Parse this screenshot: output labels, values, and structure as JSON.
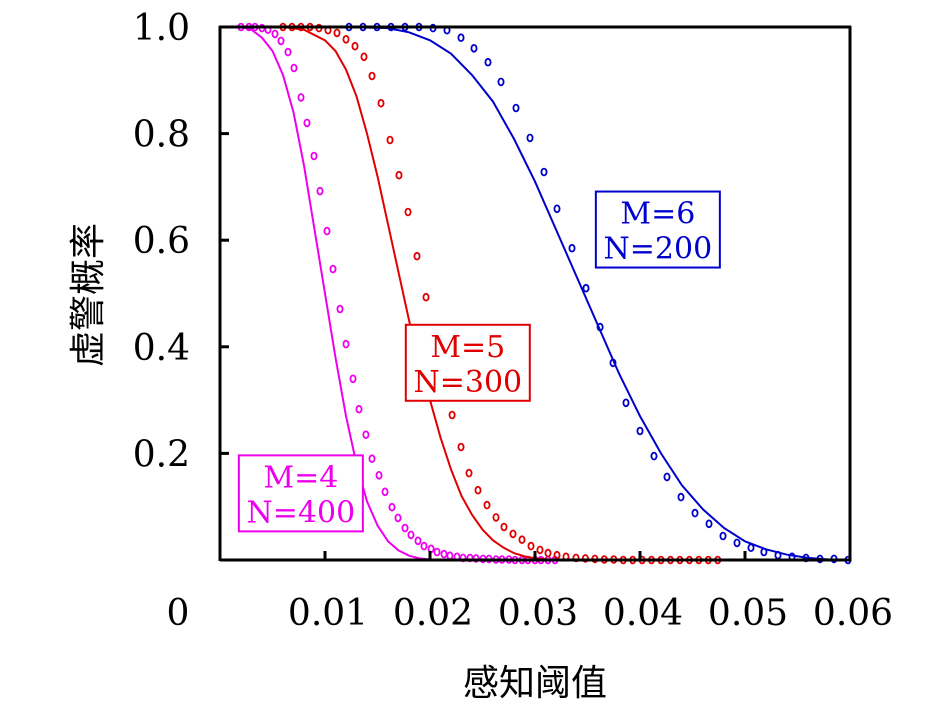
{
  "chart_data": {
    "type": "line",
    "title": "",
    "xlabel": "感知阈值",
    "ylabel": "虚警概率",
    "xlim": [
      0,
      0.06
    ],
    "ylim": [
      0,
      1.0
    ],
    "x_ticks": [
      "0",
      "0.01",
      "0.02",
      "0.03",
      "0.04",
      "0.05",
      "0.06"
    ],
    "x_tick_values": [
      0,
      0.01,
      0.02,
      0.03,
      0.04,
      0.05,
      0.06
    ],
    "y_ticks": [
      "0.2",
      "0.4",
      "0.6",
      "0.8",
      "1.0"
    ],
    "y_tick_values": [
      0.2,
      0.4,
      0.6,
      0.8,
      1.0
    ],
    "grid": false,
    "legend": "none",
    "series": [
      {
        "name": "M=4 N=400",
        "color": "#ee00ee",
        "annotation": {
          "line1": "M=4",
          "line2": "N=400",
          "anchor_x": 0.0077,
          "anchor_y": 0.125
        },
        "line": [
          [
            0.002,
            1.0
          ],
          [
            0.003,
            0.995
          ],
          [
            0.004,
            0.98
          ],
          [
            0.005,
            0.955
          ],
          [
            0.006,
            0.91
          ],
          [
            0.007,
            0.84
          ],
          [
            0.008,
            0.74
          ],
          [
            0.009,
            0.62
          ],
          [
            0.01,
            0.5
          ],
          [
            0.011,
            0.38
          ],
          [
            0.012,
            0.27
          ],
          [
            0.013,
            0.18
          ],
          [
            0.014,
            0.11
          ],
          [
            0.015,
            0.065
          ],
          [
            0.016,
            0.035
          ],
          [
            0.017,
            0.018
          ],
          [
            0.018,
            0.008
          ],
          [
            0.019,
            0.003
          ],
          [
            0.02,
            0.001
          ],
          [
            0.022,
            0.0
          ],
          [
            0.032,
            0.0
          ]
        ],
        "points": [
          [
            0.002,
            1.0
          ],
          [
            0.00276,
            1.0
          ],
          [
            0.00333,
            1.0
          ],
          [
            0.004,
            0.998
          ],
          [
            0.00457,
            0.995
          ],
          [
            0.00524,
            0.987
          ],
          [
            0.00581,
            0.974
          ],
          [
            0.00648,
            0.953
          ],
          [
            0.00705,
            0.923
          ],
          [
            0.00771,
            0.868
          ],
          [
            0.00829,
            0.82
          ],
          [
            0.00895,
            0.758
          ],
          [
            0.00952,
            0.692
          ],
          [
            0.01019,
            0.617
          ],
          [
            0.01076,
            0.546
          ],
          [
            0.01143,
            0.471
          ],
          [
            0.012,
            0.405
          ],
          [
            0.01267,
            0.34
          ],
          [
            0.01324,
            0.283
          ],
          [
            0.0139,
            0.235
          ],
          [
            0.01448,
            0.19
          ],
          [
            0.01514,
            0.159
          ],
          [
            0.01571,
            0.128
          ],
          [
            0.01638,
            0.099
          ],
          [
            0.01695,
            0.079
          ],
          [
            0.01762,
            0.06
          ],
          [
            0.01819,
            0.047
          ],
          [
            0.01886,
            0.036
          ],
          [
            0.01943,
            0.026
          ],
          [
            0.0201,
            0.021
          ],
          [
            0.02067,
            0.015
          ],
          [
            0.02133,
            0.011
          ],
          [
            0.0219,
            0.008
          ],
          [
            0.02257,
            0.006
          ],
          [
            0.02314,
            0.004
          ],
          [
            0.02381,
            0.004
          ],
          [
            0.02438,
            0.003
          ],
          [
            0.02505,
            0.002
          ],
          [
            0.02562,
            0.002
          ],
          [
            0.02629,
            0.001
          ],
          [
            0.02686,
            0.001
          ],
          [
            0.02752,
            0.001
          ],
          [
            0.0281,
            0.0
          ],
          [
            0.02876,
            0.0
          ],
          [
            0.02933,
            0.0
          ],
          [
            0.03,
            0.0
          ],
          [
            0.03057,
            0.0
          ],
          [
            0.03124,
            0.0
          ],
          [
            0.0319,
            0.0
          ]
        ]
      },
      {
        "name": "M=5 N=300",
        "color": "#e00000",
        "annotation": {
          "line1": "M=5",
          "line2": "N=300",
          "anchor_x": 0.0236,
          "anchor_y": 0.37
        },
        "line": [
          [
            0.006,
            1.0
          ],
          [
            0.008,
            0.995
          ],
          [
            0.01,
            0.975
          ],
          [
            0.011,
            0.955
          ],
          [
            0.012,
            0.92
          ],
          [
            0.013,
            0.87
          ],
          [
            0.014,
            0.8
          ],
          [
            0.015,
            0.72
          ],
          [
            0.016,
            0.63
          ],
          [
            0.017,
            0.54
          ],
          [
            0.018,
            0.45
          ],
          [
            0.019,
            0.37
          ],
          [
            0.02,
            0.3
          ],
          [
            0.021,
            0.23
          ],
          [
            0.022,
            0.17
          ],
          [
            0.023,
            0.12
          ],
          [
            0.024,
            0.085
          ],
          [
            0.025,
            0.057
          ],
          [
            0.026,
            0.037
          ],
          [
            0.027,
            0.023
          ],
          [
            0.028,
            0.013
          ],
          [
            0.029,
            0.007
          ],
          [
            0.03,
            0.003
          ],
          [
            0.032,
            0.0
          ],
          [
            0.047,
            0.0
          ]
        ],
        "points": [
          [
            0.006,
            1.0
          ],
          [
            0.00686,
            1.0
          ],
          [
            0.00771,
            1.0
          ],
          [
            0.00857,
            1.0
          ],
          [
            0.00943,
            0.998
          ],
          [
            0.01029,
            0.994
          ],
          [
            0.01114,
            0.989
          ],
          [
            0.012,
            0.977
          ],
          [
            0.01286,
            0.964
          ],
          [
            0.01371,
            0.944
          ],
          [
            0.01448,
            0.908
          ],
          [
            0.01533,
            0.857
          ],
          [
            0.01619,
            0.788
          ],
          [
            0.01705,
            0.722
          ],
          [
            0.0179,
            0.653
          ],
          [
            0.01876,
            0.57
          ],
          [
            0.01962,
            0.493
          ],
          [
            0.02048,
            0.42
          ],
          [
            0.02124,
            0.347
          ],
          [
            0.0221,
            0.272
          ],
          [
            0.02295,
            0.212
          ],
          [
            0.02371,
            0.163
          ],
          [
            0.02457,
            0.131
          ],
          [
            0.02543,
            0.103
          ],
          [
            0.02629,
            0.08
          ],
          [
            0.02705,
            0.062
          ],
          [
            0.0279,
            0.049
          ],
          [
            0.02876,
            0.038
          ],
          [
            0.02962,
            0.026
          ],
          [
            0.03048,
            0.019
          ],
          [
            0.03124,
            0.013
          ],
          [
            0.0321,
            0.009
          ],
          [
            0.03295,
            0.006
          ],
          [
            0.0339,
            0.004
          ],
          [
            0.0348,
            0.003
          ],
          [
            0.0357,
            0.002
          ],
          [
            0.0366,
            0.001
          ],
          [
            0.0375,
            0.001
          ],
          [
            0.0384,
            0.0
          ],
          [
            0.0393,
            0.0
          ],
          [
            0.0402,
            0.0
          ],
          [
            0.0411,
            0.0
          ],
          [
            0.042,
            0.0
          ],
          [
            0.0429,
            0.0
          ],
          [
            0.0438,
            0.0
          ],
          [
            0.0447,
            0.0
          ],
          [
            0.0456,
            0.0
          ],
          [
            0.0465,
            0.0
          ],
          [
            0.0474,
            0.0
          ]
        ]
      },
      {
        "name": "M=6 N=200",
        "color": "#0000cc",
        "annotation": {
          "line1": "M=6",
          "line2": "N=200",
          "anchor_x": 0.0417,
          "anchor_y": 0.62
        },
        "line": [
          [
            0.012,
            1.0
          ],
          [
            0.016,
            0.998
          ],
          [
            0.018,
            0.99
          ],
          [
            0.02,
            0.975
          ],
          [
            0.022,
            0.95
          ],
          [
            0.024,
            0.91
          ],
          [
            0.026,
            0.86
          ],
          [
            0.028,
            0.79
          ],
          [
            0.03,
            0.71
          ],
          [
            0.032,
            0.62
          ],
          [
            0.034,
            0.53
          ],
          [
            0.036,
            0.44
          ],
          [
            0.038,
            0.35
          ],
          [
            0.04,
            0.27
          ],
          [
            0.042,
            0.2
          ],
          [
            0.044,
            0.14
          ],
          [
            0.046,
            0.095
          ],
          [
            0.048,
            0.06
          ],
          [
            0.05,
            0.035
          ],
          [
            0.052,
            0.02
          ],
          [
            0.054,
            0.01
          ],
          [
            0.056,
            0.004
          ],
          [
            0.058,
            0.001
          ],
          [
            0.06,
            0.0
          ]
        ],
        "points": [
          [
            0.01229,
            1.0
          ],
          [
            0.01362,
            1.0
          ],
          [
            0.01495,
            1.0
          ],
          [
            0.01629,
            1.0
          ],
          [
            0.01762,
            1.0
          ],
          [
            0.01895,
            1.0
          ],
          [
            0.02029,
            0.998
          ],
          [
            0.02162,
            0.994
          ],
          [
            0.02295,
            0.98
          ],
          [
            0.02419,
            0.96
          ],
          [
            0.02552,
            0.934
          ],
          [
            0.02676,
            0.897
          ],
          [
            0.02819,
            0.848
          ],
          [
            0.02952,
            0.792
          ],
          [
            0.03086,
            0.728
          ],
          [
            0.0321,
            0.659
          ],
          [
            0.03352,
            0.585
          ],
          [
            0.03486,
            0.51
          ],
          [
            0.0362,
            0.437
          ],
          [
            0.03743,
            0.37
          ],
          [
            0.03867,
            0.295
          ],
          [
            0.04,
            0.242
          ],
          [
            0.04133,
            0.195
          ],
          [
            0.04257,
            0.156
          ],
          [
            0.0439,
            0.118
          ],
          [
            0.04524,
            0.088
          ],
          [
            0.04657,
            0.068
          ],
          [
            0.0479,
            0.045
          ],
          [
            0.04924,
            0.032
          ],
          [
            0.05057,
            0.023
          ],
          [
            0.0518,
            0.015
          ],
          [
            0.05314,
            0.009
          ],
          [
            0.05448,
            0.006
          ],
          [
            0.05581,
            0.004
          ],
          [
            0.05714,
            0.002
          ],
          [
            0.05848,
            0.002
          ],
          [
            0.05981,
            0.0
          ]
        ]
      }
    ]
  }
}
